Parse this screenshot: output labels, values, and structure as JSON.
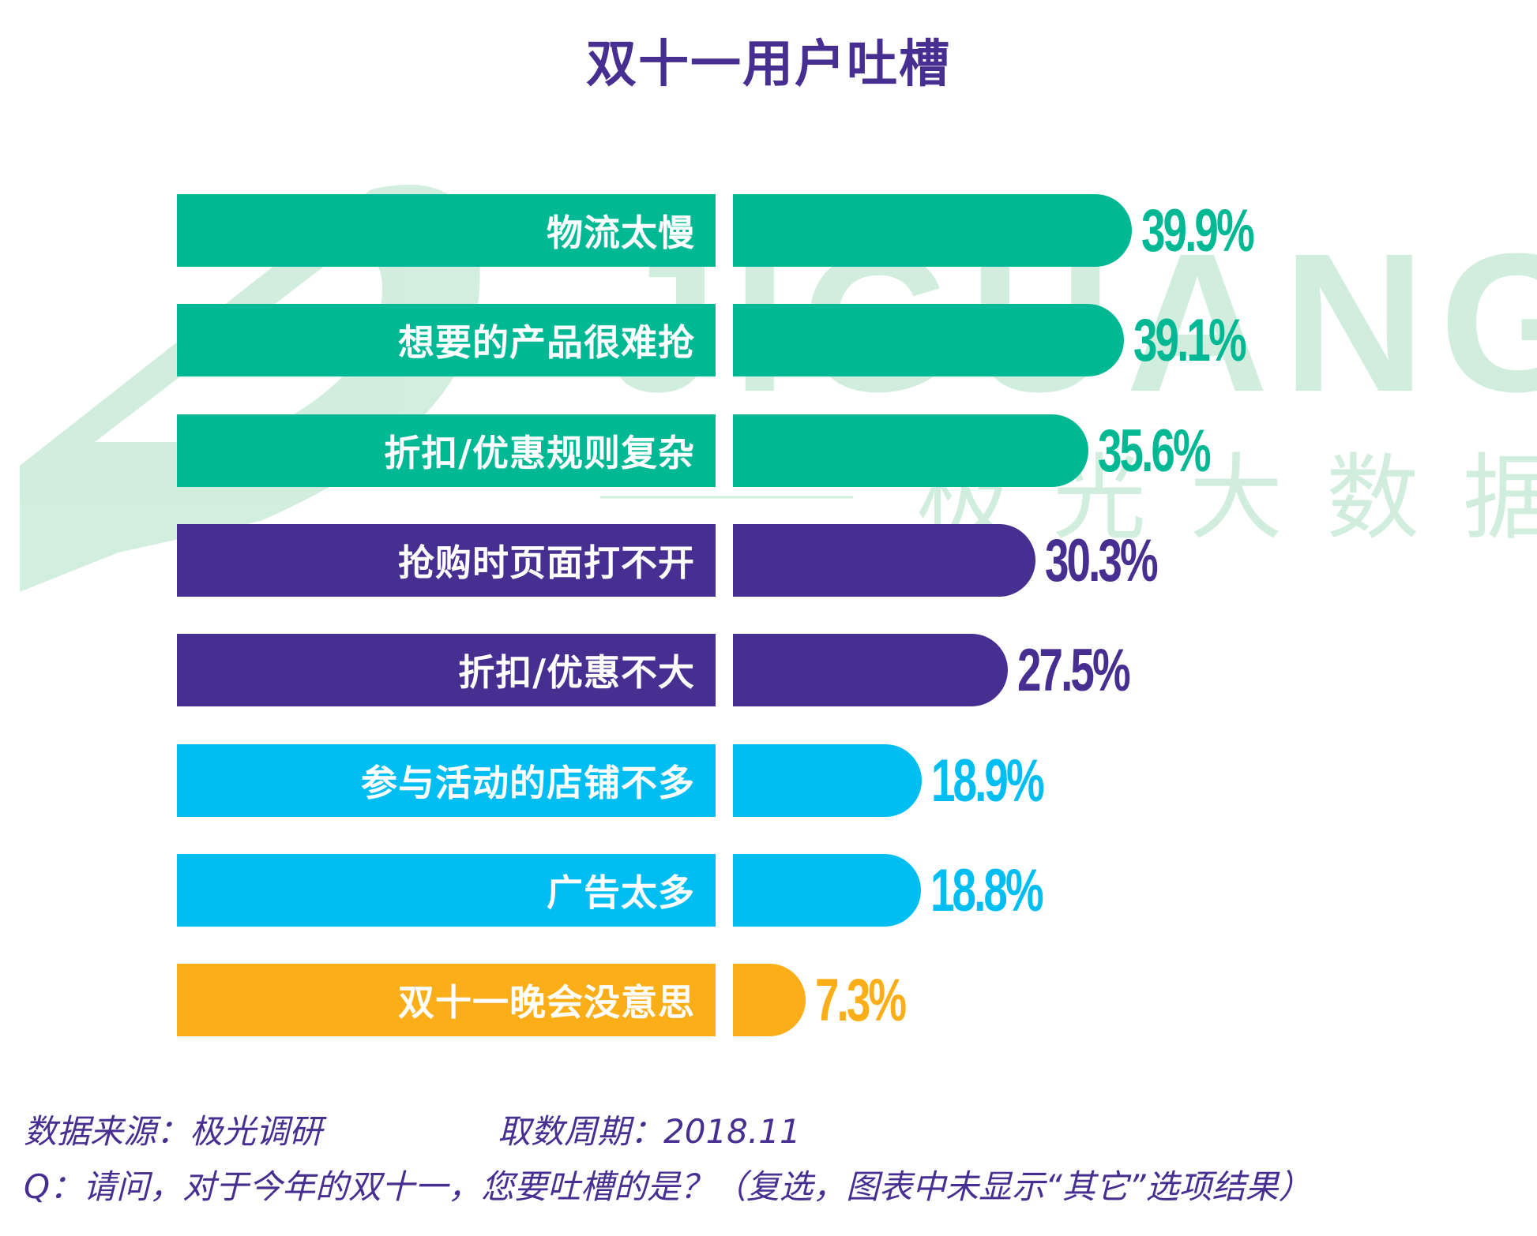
{
  "title": "双十一用户吐槽",
  "watermark": {
    "logo_text": "JIGUANG",
    "cn_text": "极光大数据"
  },
  "chart_data": {
    "type": "bar",
    "orientation": "horizontal",
    "title": "双十一用户吐槽",
    "categories": [
      "物流太慢",
      "想要的产品很难抢",
      "折扣/优惠规则复杂",
      "抢购时页面打不开",
      "折扣/优惠不大",
      "参与活动的店铺不多",
      "广告太多",
      "双十一晚会没意思"
    ],
    "values": [
      39.9,
      39.1,
      35.6,
      30.3,
      27.5,
      18.9,
      18.8,
      7.3
    ],
    "value_labels": [
      "39.9%",
      "39.1%",
      "35.6%",
      "30.3%",
      "27.5%",
      "18.9%",
      "18.8%",
      "7.3%"
    ],
    "colors": [
      "#00b894",
      "#00b894",
      "#00b894",
      "#472f91",
      "#472f91",
      "#00bdf2",
      "#00bdf2",
      "#fbae17"
    ],
    "xlim": [
      0,
      40
    ],
    "xlabel": "",
    "ylabel": "",
    "grid": false
  },
  "footer": {
    "source_label": "数据来源：极光调研",
    "period_label": "取数周期：2018.11",
    "question": "Q：请问，对于今年的双十一，您要吐槽的是？（复选，图表中未显示“其它”选项结果）"
  }
}
